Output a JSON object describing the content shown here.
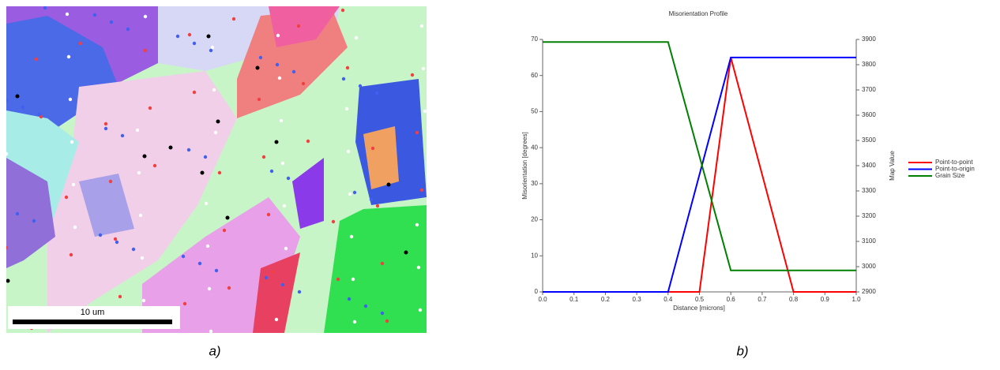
{
  "figure_a": {
    "scale_bar_label": "10 um",
    "caption": "a)"
  },
  "figure_b": {
    "caption": "b)"
  },
  "chart_data": {
    "type": "line",
    "title": "Misorientation Profile",
    "x_label": "Distance [microns]",
    "y_label": "Misorientation [degrees]",
    "y2_label": "Map Value",
    "x": [
      0,
      0.1,
      0.2,
      0.3,
      0.4,
      0.5,
      0.6,
      0.7,
      0.8,
      0.9,
      1.0
    ],
    "series": [
      {
        "name": "Point-to-point",
        "color": "#ff0000",
        "values": [
          0,
          0,
          0,
          0,
          0,
          0,
          65,
          32.5,
          0,
          0,
          0
        ]
      },
      {
        "name": "Point-to-origin",
        "color": "#0000ff",
        "values": [
          0,
          0,
          0,
          0,
          0,
          32.5,
          65,
          65,
          65,
          65,
          65
        ]
      },
      {
        "name": "Grain Size",
        "color": "#008000",
        "axis": "y2",
        "values": [
          3890,
          3890,
          3890,
          3890,
          3890,
          3437.5,
          2985,
          2985,
          2985,
          2985,
          2985
        ]
      }
    ],
    "xlim": [
      0,
      1.0
    ],
    "xticks": [
      {
        "value": 0,
        "label": "0.0"
      },
      0.1,
      0.2,
      0.3,
      0.4,
      0.5,
      0.6,
      0.7,
      0.8,
      0.9,
      {
        "value": 1.0,
        "label": "1.0"
      }
    ],
    "ylim": [
      0,
      70
    ],
    "yticks": [
      0,
      10,
      20,
      30,
      40,
      50,
      60,
      70
    ],
    "y2lim": [
      2900,
      3900
    ],
    "y2ticks": [
      2900,
      3000,
      3100,
      3200,
      3300,
      3400,
      3500,
      3600,
      3700,
      3800,
      3900
    ],
    "legend": "right"
  }
}
